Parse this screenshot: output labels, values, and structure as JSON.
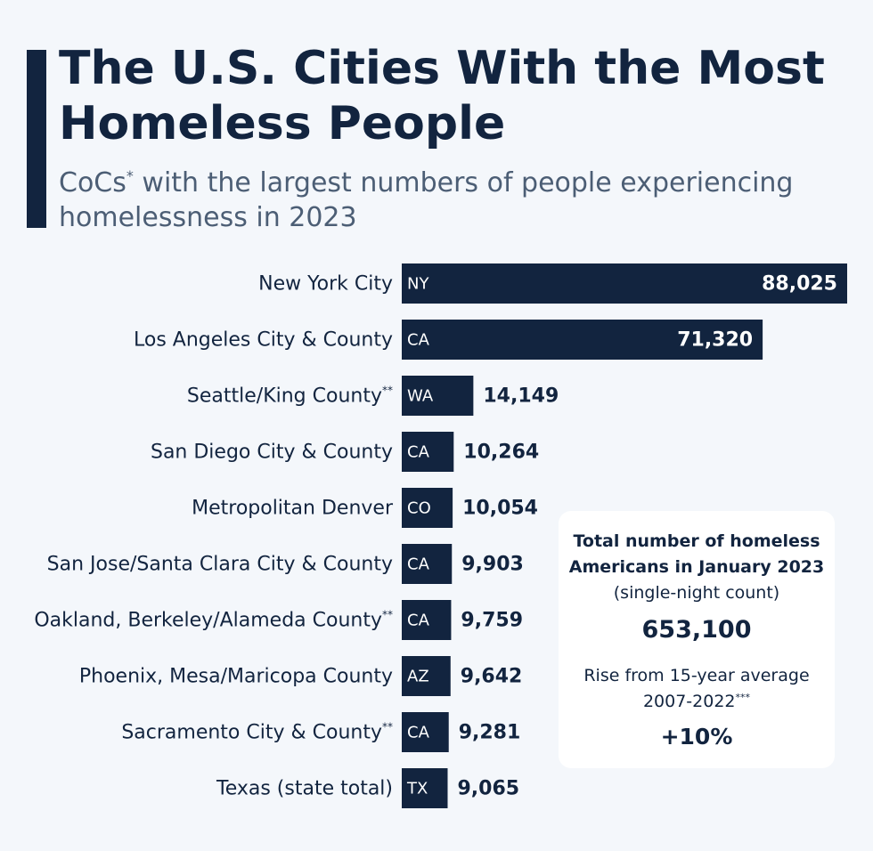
{
  "header": {
    "title": "The U.S. Cities With the Most Homeless People",
    "subtitle_prefix": "CoCs",
    "subtitle_mark": "*",
    "subtitle_rest": " with the largest numbers of people experiencing homelessness in 2023"
  },
  "chart_data": {
    "type": "bar",
    "orientation": "horizontal",
    "title": "The U.S. Cities With the Most Homeless People",
    "subtitle": "CoCs* with the largest numbers of people experiencing homelessness in 2023",
    "categories": [
      "New York City",
      "Los Angeles City & County",
      "Seattle/King County",
      "San Diego City & County",
      "Metropolitan Denver",
      "San Jose/Santa Clara City & County",
      "Oakland, Berkeley/Alameda County",
      "Phoenix, Mesa/Maricopa County",
      "Sacramento City & County",
      "Texas (state total)"
    ],
    "footnote_marks": [
      "",
      "",
      "**",
      "",
      "",
      "",
      "**",
      "",
      "**",
      ""
    ],
    "state_codes": [
      "NY",
      "CA",
      "WA",
      "CA",
      "CO",
      "CA",
      "CA",
      "AZ",
      "CA",
      "TX"
    ],
    "values": [
      88025,
      71320,
      14149,
      10264,
      10054,
      9903,
      9759,
      9642,
      9281,
      9065
    ],
    "value_labels": [
      "88,025",
      "71,320",
      "14,149",
      "10,264",
      "10,054",
      "9,903",
      "9,759",
      "9,642",
      "9,281",
      "9,065"
    ],
    "bar_color": "#12243f",
    "grid": false,
    "legend": "none"
  },
  "info_box": {
    "heading": "Total number of homeless Americans in January 2023",
    "note": "(single-night count)",
    "total": "653,100",
    "rise_label": "Rise from 15-year average 2007-2022",
    "rise_mark": "***",
    "rise_value": "+10%"
  }
}
